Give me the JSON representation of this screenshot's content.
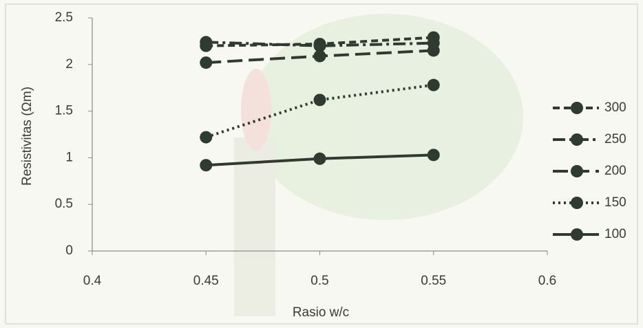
{
  "chart_data": {
    "type": "line",
    "x_label": "Rasio w/c",
    "y_label": "Resistivitas (Ωm)",
    "xlim": [
      0.4,
      0.6
    ],
    "xticks": [
      0.4,
      0.45,
      0.5,
      0.55,
      0.6
    ],
    "ylim": [
      0,
      2.5
    ],
    "yticks": [
      0,
      0.5,
      1,
      1.5,
      2,
      2.5
    ],
    "grid": false,
    "legend": "right",
    "x": [
      0.45,
      0.5,
      0.55
    ],
    "series": [
      {
        "name": "300",
        "color": "#2f3a30",
        "dash": "dash",
        "values": [
          2.2,
          2.22,
          2.29
        ]
      },
      {
        "name": "250",
        "color": "#2f3a30",
        "dash": "dashdot",
        "values": [
          2.24,
          2.2,
          2.23
        ]
      },
      {
        "name": "200",
        "color": "#2f3a30",
        "dash": "longdash",
        "values": [
          2.02,
          2.09,
          2.15
        ]
      },
      {
        "name": "150",
        "color": "#2f3a30",
        "dash": "dot",
        "values": [
          1.22,
          1.62,
          1.78
        ]
      },
      {
        "name": "100",
        "color": "#2f3a30",
        "dash": "solid",
        "values": [
          0.92,
          0.99,
          1.03
        ]
      }
    ]
  }
}
